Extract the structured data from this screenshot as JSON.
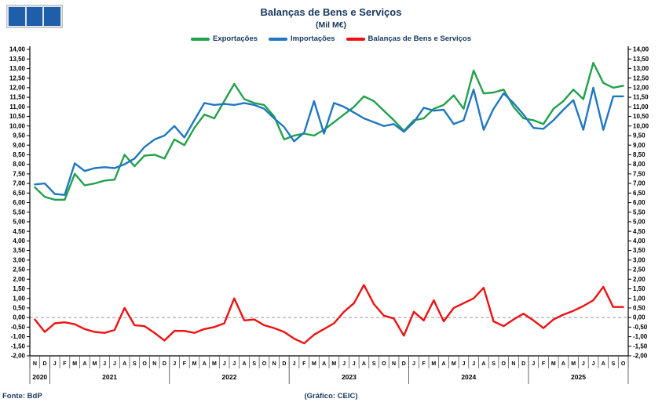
{
  "header": {
    "title": "Balanças de Bens e Serviços",
    "subtitle": "(Mil M€)",
    "logo_color": "#1f5ea8"
  },
  "legend": [
    {
      "label": "Exportações",
      "color": "#22a14a"
    },
    {
      "label": "Importações",
      "color": "#1f77c0"
    },
    {
      "label": "Balanças de Bens e Serviços",
      "color": "#ee1111"
    }
  ],
  "footer": {
    "source": "Fonte: BdP",
    "note": "(Gráfico: CEIC)"
  },
  "colors": {
    "brand_text": "#17375e",
    "axis": "#000000",
    "zero_line": "#999999"
  },
  "chart_data": {
    "type": "line",
    "title": "Balanças de Bens e Serviços",
    "subtitle": "(Mil M€)",
    "xlabel": "",
    "ylabel": "",
    "ylim": [
      -2.0,
      14.0
    ],
    "ytick_step": 0.5,
    "grid": "zero-dashed-line-only",
    "legend_position": "top",
    "y_tick_labels": [
      "14,00",
      "13,50",
      "13,00",
      "12,50",
      "12,00",
      "11,50",
      "11,00",
      "10,50",
      "10,00",
      "9,50",
      "9,00",
      "8,50",
      "8,00",
      "7,50",
      "7,00",
      "6,50",
      "6,00",
      "5,50",
      "5,00",
      "4,50",
      "4,00",
      "3,50",
      "3,00",
      "2,50",
      "2,00",
      "1,50",
      "1,00",
      "0,50",
      "0,00",
      "-0,50",
      "-1,00",
      "-1,50",
      "-2,00"
    ],
    "x_months": [
      "N",
      "D",
      "J",
      "F",
      "M",
      "A",
      "M",
      "J",
      "J",
      "A",
      "S",
      "O",
      "N",
      "D",
      "J",
      "F",
      "M",
      "A",
      "M",
      "J",
      "J",
      "A",
      "S",
      "O",
      "N",
      "D",
      "J",
      "F",
      "M",
      "A",
      "M",
      "J",
      "J",
      "A",
      "S",
      "O",
      "N",
      "D",
      "J",
      "F",
      "M",
      "A",
      "M",
      "J",
      "J",
      "A",
      "S",
      "O",
      "N",
      "D",
      "J",
      "F",
      "M",
      "A",
      "M",
      "J",
      "J",
      "A",
      "S",
      "O"
    ],
    "years": [
      {
        "label": "2020",
        "span": 2
      },
      {
        "label": "2021",
        "span": 12
      },
      {
        "label": "2022",
        "span": 12
      },
      {
        "label": "2023",
        "span": 12
      },
      {
        "label": "2024",
        "span": 12
      },
      {
        "label": "2025",
        "span": 10
      }
    ],
    "series": [
      {
        "name": "Exportações",
        "color": "#22a14a",
        "values": [
          6.8,
          6.3,
          6.15,
          6.15,
          7.5,
          6.9,
          7.0,
          7.15,
          7.2,
          8.5,
          7.9,
          8.45,
          8.5,
          8.3,
          9.3,
          9.0,
          9.9,
          10.6,
          10.4,
          11.3,
          12.2,
          11.4,
          11.2,
          11.1,
          10.5,
          9.3,
          9.5,
          9.6,
          9.5,
          9.8,
          10.2,
          10.6,
          11.0,
          11.55,
          11.3,
          10.8,
          10.3,
          9.75,
          10.3,
          10.4,
          10.9,
          11.1,
          11.6,
          10.9,
          12.9,
          11.7,
          11.75,
          11.9,
          11.0,
          10.4,
          10.3,
          10.1,
          10.9,
          11.3,
          11.9,
          11.4,
          13.3,
          12.25,
          12.0,
          12.1
        ]
      },
      {
        "name": "Importações",
        "color": "#1f77c0",
        "values": [
          6.95,
          7.0,
          6.45,
          6.4,
          8.05,
          7.65,
          7.8,
          7.85,
          7.8,
          8.0,
          8.3,
          8.9,
          9.3,
          9.5,
          10.0,
          9.4,
          10.3,
          11.2,
          11.1,
          11.15,
          11.1,
          11.2,
          11.1,
          10.9,
          10.4,
          9.95,
          9.2,
          9.65,
          11.3,
          9.6,
          11.2,
          11.0,
          10.7,
          10.4,
          10.2,
          10.0,
          10.1,
          9.7,
          10.2,
          10.95,
          10.8,
          10.85,
          10.1,
          10.3,
          11.9,
          9.8,
          10.9,
          11.7,
          11.2,
          10.6,
          9.9,
          9.85,
          10.3,
          10.85,
          11.35,
          9.8,
          12.0,
          9.8,
          11.55,
          11.55
        ]
      },
      {
        "name": "Balanças de Bens e Serviços",
        "color": "#ee1111",
        "values": [
          -0.1,
          -0.75,
          -0.3,
          -0.25,
          -0.35,
          -0.6,
          -0.75,
          -0.8,
          -0.65,
          0.5,
          -0.4,
          -0.45,
          -0.8,
          -1.2,
          -0.7,
          -0.7,
          -0.8,
          -0.6,
          -0.5,
          -0.3,
          1.0,
          -0.15,
          -0.1,
          -0.4,
          -0.55,
          -0.75,
          -1.1,
          -1.35,
          -0.9,
          -0.6,
          -0.3,
          0.3,
          0.75,
          1.7,
          0.7,
          0.1,
          -0.05,
          -0.95,
          0.3,
          -0.15,
          0.9,
          -0.2,
          0.5,
          0.75,
          1.0,
          1.55,
          -0.2,
          -0.45,
          -0.1,
          0.2,
          -0.15,
          -0.55,
          -0.1,
          0.15,
          0.35,
          0.6,
          0.9,
          1.6,
          0.55,
          0.55
        ]
      }
    ]
  }
}
